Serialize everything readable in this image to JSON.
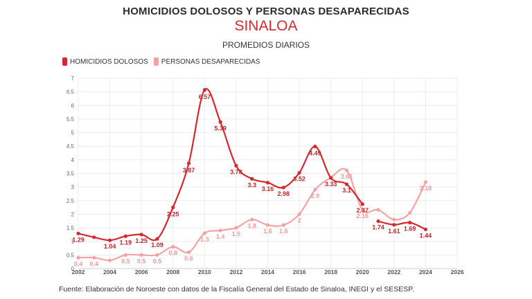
{
  "title": "HOMICIDIOS DOLOSOS Y PERSONAS DESAPARECIDAS",
  "subtitle": "SINALOA",
  "subsubtitle": "PROMEDIOS DIARIOS",
  "source": "Fuente: Elaboración de Noroeste con datos de la Fiscalía General del Estado de Sinaloa, INEGI y el SESESP.",
  "colors": {
    "homicidios": "#d3282e",
    "desaparecidas": "#f2a3a5"
  },
  "chart_data": {
    "type": "line",
    "title": "HOMICIDIOS DOLOSOS Y PERSONAS DESAPARECIDAS",
    "subtitle": "SINALOA",
    "xlim": [
      2002,
      2026
    ],
    "ylim": [
      0,
      7
    ],
    "x_ticks": [
      "2002",
      "2004",
      "2006",
      "2008",
      "2010",
      "2012",
      "2014",
      "2016",
      "2018",
      "2020",
      "2022",
      "2024",
      "2026"
    ],
    "y_ticks": [
      "0",
      "0.5",
      "1",
      "1.5",
      "2",
      "2.5",
      "3",
      "3.5",
      "4",
      "4.5",
      "5",
      "5.5",
      "6",
      "6.5",
      "7"
    ],
    "grid": true,
    "legend_position": "top-left",
    "series": [
      {
        "name": "HOMICIDIOS DOLOSOS",
        "segments": [
          [
            {
              "x": 2002,
              "y": 1.29,
              "label": "1.29"
            },
            {
              "x": 2003,
              "y": 1.15,
              "label": ""
            },
            {
              "x": 2004,
              "y": 1.04,
              "label": "1.04"
            },
            {
              "x": 2005,
              "y": 1.19,
              "label": "1.19"
            },
            {
              "x": 2006,
              "y": 1.25,
              "label": "1.25"
            },
            {
              "x": 2007,
              "y": 1.09,
              "label": "1.09"
            },
            {
              "x": 2008,
              "y": 2.25,
              "label": "2.25"
            },
            {
              "x": 2009,
              "y": 3.87,
              "label": "3.87"
            },
            {
              "x": 2010,
              "y": 6.57,
              "label": "6.57"
            },
            {
              "x": 2011,
              "y": 5.39,
              "label": "5.39"
            },
            {
              "x": 2012,
              "y": 3.78,
              "label": "3.78"
            },
            {
              "x": 2013,
              "y": 3.3,
              "label": "3.3"
            },
            {
              "x": 2014,
              "y": 3.16,
              "label": "3.16"
            },
            {
              "x": 2015,
              "y": 2.98,
              "label": "2.98"
            },
            {
              "x": 2016,
              "y": 3.52,
              "label": "3.52"
            },
            {
              "x": 2017,
              "y": 4.49,
              "label": "4.49"
            },
            {
              "x": 2018,
              "y": 3.33,
              "label": "3.33"
            },
            {
              "x": 2019,
              "y": 3.1,
              "label": "3.1"
            },
            {
              "x": 2020,
              "y": 2.37,
              "label": "2.37"
            }
          ],
          [
            {
              "x": 2021,
              "y": 1.74,
              "label": "1.74"
            },
            {
              "x": 2022,
              "y": 1.61,
              "label": "1.61"
            },
            {
              "x": 2023,
              "y": 1.69,
              "label": "1.69"
            },
            {
              "x": 2024,
              "y": 1.44,
              "label": "1.44"
            }
          ]
        ]
      },
      {
        "name": "PERSONAS DESAPARECIDAS",
        "segments": [
          [
            {
              "x": 2002,
              "y": 0.4,
              "label": "0.4"
            },
            {
              "x": 2003,
              "y": 0.4,
              "label": "0.4"
            },
            {
              "x": 2004,
              "y": 0.3,
              "label": ""
            },
            {
              "x": 2005,
              "y": 0.5,
              "label": "0.5"
            },
            {
              "x": 2006,
              "y": 0.5,
              "label": "0.5"
            },
            {
              "x": 2007,
              "y": 0.5,
              "label": "0.5"
            },
            {
              "x": 2008,
              "y": 0.8,
              "label": "0.8"
            },
            {
              "x": 2009,
              "y": 0.6,
              "label": "0.6"
            },
            {
              "x": 2010,
              "y": 1.3,
              "label": "1.3"
            },
            {
              "x": 2011,
              "y": 1.4,
              "label": "1.4"
            },
            {
              "x": 2012,
              "y": 1.5,
              "label": "1.5"
            },
            {
              "x": 2013,
              "y": 1.8,
              "label": "1.8"
            },
            {
              "x": 2014,
              "y": 1.6,
              "label": "1.6"
            },
            {
              "x": 2015,
              "y": 1.6,
              "label": "1.6"
            },
            {
              "x": 2016,
              "y": 2,
              "label": "2"
            },
            {
              "x": 2017,
              "y": 2.9,
              "label": "2.9"
            },
            {
              "x": 2018,
              "y": 3.35,
              "label": ""
            },
            {
              "x": 2019,
              "y": 3.61,
              "label": "3.61"
            },
            {
              "x": 2020,
              "y": 2.16,
              "label": "2.16"
            },
            {
              "x": 2021,
              "y": 2.16,
              "label": ""
            },
            {
              "x": 2022,
              "y": 1.8,
              "label": ""
            },
            {
              "x": 2023,
              "y": 2.05,
              "label": ""
            },
            {
              "x": 2024,
              "y": 3.18,
              "label": "3.18"
            }
          ]
        ]
      }
    ]
  }
}
